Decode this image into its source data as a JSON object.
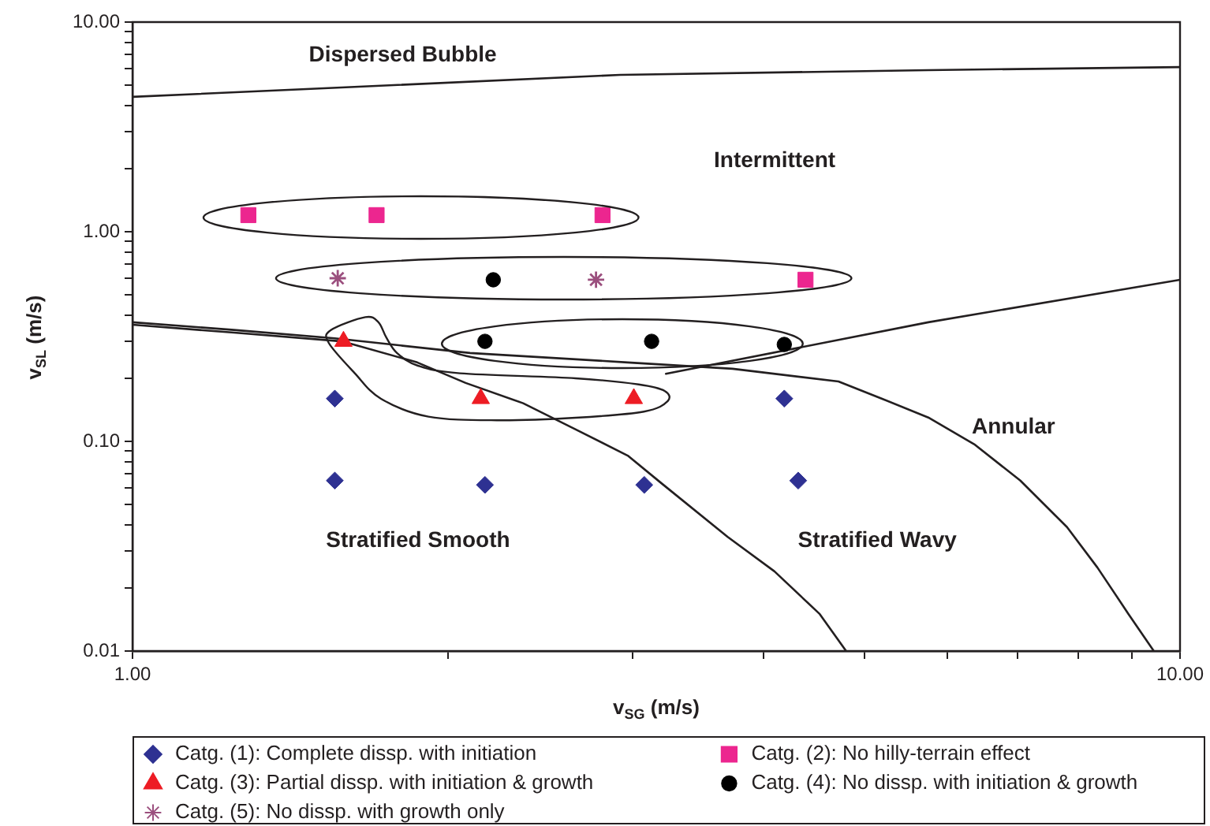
{
  "chart_data": {
    "type": "scatter",
    "xlabel": "v$_{SG}$ (m/s)",
    "ylabel": "v$_{SL}$ (m/s)",
    "log": "xy",
    "legend": "bottom",
    "xlim": [
      1,
      10
    ],
    "ylim": [
      0.01,
      10
    ],
    "xticks": [
      {
        "value": 1,
        "label": "1.00"
      },
      {
        "value": 2,
        "label": null
      },
      {
        "value": 3,
        "label": null
      },
      {
        "value": 4,
        "label": null
      },
      {
        "value": 5,
        "label": null
      },
      {
        "value": 6,
        "label": null
      },
      {
        "value": 7,
        "label": null
      },
      {
        "value": 8,
        "label": null
      },
      {
        "value": 9,
        "label": null
      },
      {
        "value": 10,
        "label": "10.00"
      }
    ],
    "yticks": [
      0.01,
      {
        "value": 0.02,
        "label": null
      },
      {
        "value": 0.03,
        "label": null
      },
      {
        "value": 0.04,
        "label": null
      },
      {
        "value": 0.05,
        "label": null
      },
      {
        "value": 0.06,
        "label": null
      },
      {
        "value": 0.07,
        "label": null
      },
      {
        "value": 0.08,
        "label": null
      },
      {
        "value": 0.09,
        "label": null
      },
      {
        "value": 0.1,
        "label": "0.10"
      },
      {
        "value": 0.2,
        "label": null
      },
      {
        "value": 0.3,
        "label": null
      },
      {
        "value": 0.4,
        "label": null
      },
      {
        "value": 0.5,
        "label": null
      },
      {
        "value": 0.6,
        "label": null
      },
      {
        "value": 0.7,
        "label": null
      },
      {
        "value": 0.8,
        "label": null
      },
      {
        "value": 0.9,
        "label": null
      },
      {
        "value": 1,
        "label": "1.00"
      },
      {
        "value": 2,
        "label": null
      },
      {
        "value": 3,
        "label": null
      },
      {
        "value": 4,
        "label": null
      },
      {
        "value": 5,
        "label": null
      },
      {
        "value": 6,
        "label": null
      },
      {
        "value": 7,
        "label": null
      },
      {
        "value": 8,
        "label": null
      },
      {
        "value": 9,
        "label": null
      },
      {
        "value": 10,
        "label": "10.00"
      }
    ],
    "annotations": [
      "Dispersed Bubble",
      "Intermittent",
      "Annular",
      "Stratified Smooth",
      "Stratified Wavy"
    ],
    "series": [
      {
        "name": "Catg. (1): Complete dissp. with initiation",
        "type": "scatter",
        "marker": "diamond",
        "color": "#2e3192",
        "x": [
          1.56,
          1.56,
          2.17,
          3.08,
          4.19,
          4.32
        ],
        "values": [
          0.16,
          0.065,
          0.062,
          0.062,
          0.16,
          0.065
        ]
      },
      {
        "name": "Catg. (2): No hilly-terrain effect",
        "type": "scatter",
        "marker": "square",
        "color": "#ec268f",
        "x": [
          1.29,
          1.71,
          2.81,
          4.39
        ],
        "values": [
          1.2,
          1.2,
          1.2,
          0.59
        ]
      },
      {
        "name": "Catg. (3): Partial dissp. with initiation & growth",
        "type": "scatter",
        "marker": "triangle",
        "color": "#ed1c24",
        "x": [
          1.59,
          2.15,
          3.01
        ],
        "values": [
          0.3,
          0.16,
          0.16
        ]
      },
      {
        "name": "Catg. (4): No dissp. with initiation & growth",
        "type": "scatter",
        "marker": "circle",
        "color": "#000000",
        "x": [
          2.21,
          2.17,
          3.13,
          4.19
        ],
        "values": [
          0.59,
          0.3,
          0.3,
          0.29
        ]
      },
      {
        "name": "Catg. (5): No dissp. with growth only",
        "type": "scatter",
        "marker": "cross",
        "color": "#9b4f7e",
        "x": [
          1.57,
          2.77
        ],
        "values": [
          0.6,
          0.59
        ]
      },
      {
        "type": "line",
        "marker": "none",
        "color": "#231f20",
        "x": [
          1,
          1.48,
          2.92,
          5.75,
          10
        ],
        "values": [
          4.4,
          4.8,
          5.6,
          5.9,
          6.1
        ]
      },
      {
        "type": "line",
        "marker": "none",
        "color": "#231f20",
        "x": [
          1,
          1.25,
          1.585,
          1.87,
          2.08,
          2.36,
          2.64,
          2.97,
          3.2,
          3.7,
          4.1,
          4.53,
          4.8
        ],
        "values": [
          0.36,
          0.33,
          0.3,
          0.238,
          0.19,
          0.152,
          0.115,
          0.0855,
          0.063,
          0.035,
          0.024,
          0.015,
          0.01
        ]
      },
      {
        "type": "line",
        "marker": "none",
        "color": "#231f20",
        "x": [
          1,
          1.25,
          1.56,
          2.1,
          2.97,
          3.74,
          4.72,
          5.19,
          5.75,
          6.36,
          7.04,
          7.8,
          8.34,
          8.93,
          9.44
        ],
        "values": [
          0.37,
          0.34,
          0.31,
          0.264,
          0.238,
          0.222,
          0.193,
          0.16,
          0.13,
          0.097,
          0.065,
          0.039,
          0.025,
          0.015,
          0.01
        ]
      },
      {
        "type": "line",
        "marker": "none",
        "color": "#231f20",
        "x": [
          3.23,
          5.75,
          10
        ],
        "values": [
          0.21,
          0.37,
          0.59
        ]
      }
    ]
  }
}
